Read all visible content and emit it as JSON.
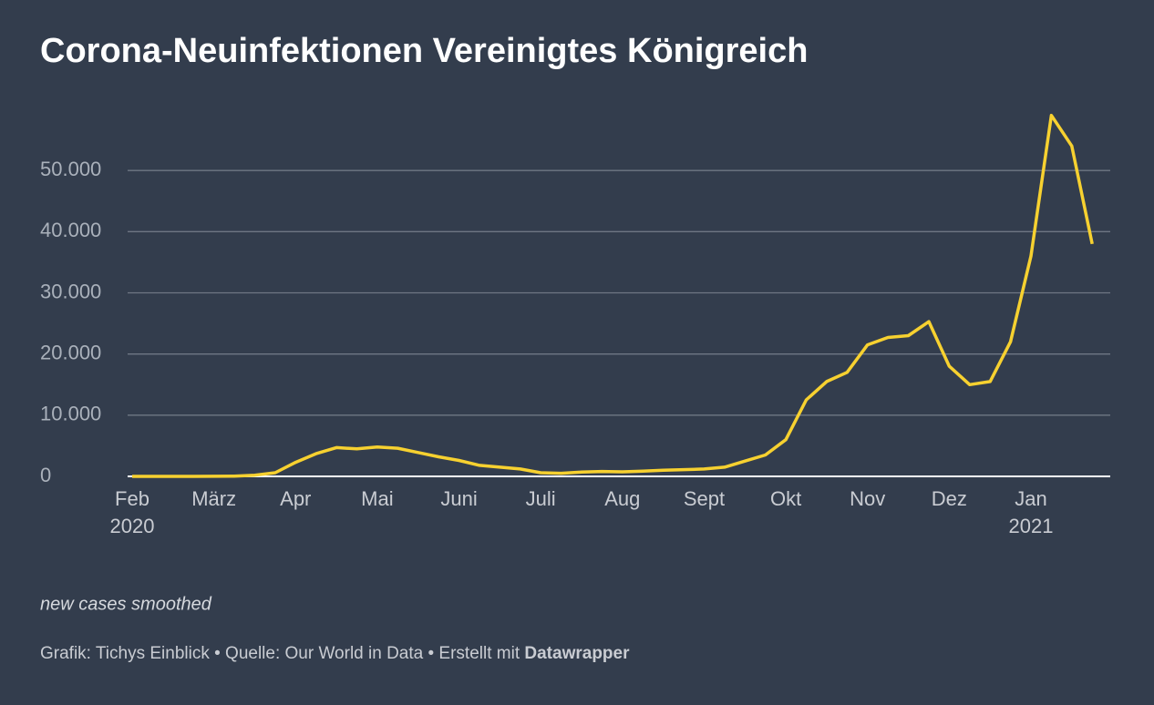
{
  "chart_data": {
    "type": "line",
    "title": "Corona-Neuinfektionen Vereinigtes Königreich",
    "note": "new cases smoothed",
    "source": "Grafik: Tichys Einblick • Quelle: Our World in Data • Erstellt mit",
    "source_bold": "Datawrapper",
    "categories": [
      "Feb 2020",
      null,
      null,
      null,
      "März",
      null,
      null,
      null,
      "Apr",
      null,
      null,
      null,
      "Mai",
      null,
      null,
      null,
      "Juni",
      null,
      null,
      null,
      "Juli",
      null,
      null,
      null,
      "Aug",
      null,
      null,
      null,
      "Sept",
      null,
      null,
      null,
      "Okt",
      null,
      null,
      null,
      "Nov",
      null,
      null,
      null,
      "Dez",
      null,
      null,
      null,
      "Jan 2021",
      null,
      null,
      null
    ],
    "series": [
      {
        "name": "new cases smoothed",
        "color": "#f7d130",
        "values": [
          0,
          0,
          0,
          0,
          20,
          40,
          200,
          600,
          2300,
          3700,
          4700,
          4500,
          4800,
          4600,
          3900,
          3200,
          2600,
          1800,
          1500,
          1200,
          600,
          500,
          700,
          800,
          750,
          850,
          1000,
          1100,
          1200,
          1500,
          2500,
          3500,
          6000,
          12500,
          15500,
          17000,
          21500,
          22700,
          23000,
          25300,
          18000,
          15000,
          15500,
          22000,
          36000,
          59000,
          54000,
          38000
        ]
      }
    ],
    "ylim": [
      0,
      60000
    ],
    "yticks": [
      0,
      {
        "value": 10000,
        "label": "10.000"
      },
      {
        "value": 20000,
        "label": "20.000"
      },
      {
        "value": 30000,
        "label": "30.000"
      },
      {
        "value": 40000,
        "label": "40.000"
      },
      {
        "value": 50000,
        "label": "50.000"
      }
    ],
    "grid": true
  }
}
